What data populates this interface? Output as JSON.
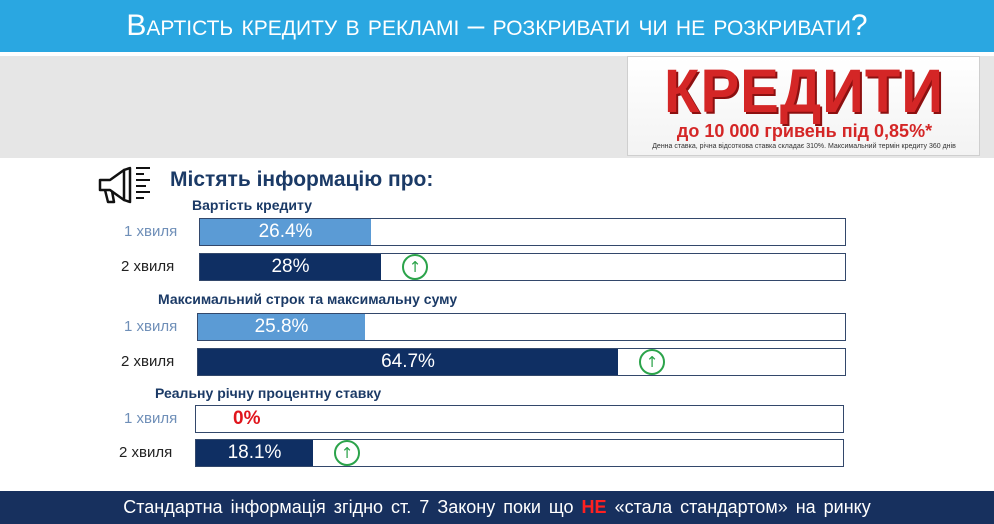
{
  "title": "Вартість кредиту в рекламі – розкривати чи не розкривати?",
  "ad": {
    "headline": "КРЕДИТИ",
    "subline": "до 10 000 гривень під 0,85%*",
    "note": "Денна ставка, річна відсоткова ставка складає 310%. Максимальний термін кредиту 360 днів"
  },
  "section_heading": "Містять інформацію про:",
  "icons": {
    "megaphone": "megaphone-icon",
    "up": "arrow-up-circle-icon"
  },
  "colors": {
    "title_bar": "#2aa7e1",
    "wave1": "#5b9bd5",
    "wave2": "#0f2f63",
    "up_arrow": "#2ba34a",
    "footer": "#17305e",
    "highlight": "#e0151c"
  },
  "chart_data": {
    "type": "bar",
    "orientation": "horizontal",
    "xlim": [
      0,
      100
    ],
    "unit": "%",
    "groups": [
      {
        "category": "Вартість кредиту",
        "rows": [
          {
            "label": "1 хвиля",
            "value": 26.4,
            "value_label": "26.4%",
            "increase": false
          },
          {
            "label": "2 хвиля",
            "value": 28,
            "value_label": "28%",
            "increase": true
          }
        ]
      },
      {
        "category": "Максимальний строк та максимальну суму",
        "rows": [
          {
            "label": "1 хвиля",
            "value": 25.8,
            "value_label": "25.8%",
            "increase": false
          },
          {
            "label": "2 хвиля",
            "value": 64.7,
            "value_label": "64.7%",
            "increase": true
          }
        ]
      },
      {
        "category": "Реальну річну процентну ставку",
        "rows": [
          {
            "label": "1 хвиля",
            "value": 0,
            "value_label": "0%",
            "increase": false
          },
          {
            "label": "2 хвиля",
            "value": 18.1,
            "value_label": "18.1%",
            "increase": true
          }
        ]
      }
    ]
  },
  "up_arrow_glyph": "↑",
  "footer": {
    "before": "Стандартна інформація згідно ст. 7 Закону поки що ",
    "emphasis": "НЕ",
    "after": " «стала стандартом» на ринку"
  }
}
